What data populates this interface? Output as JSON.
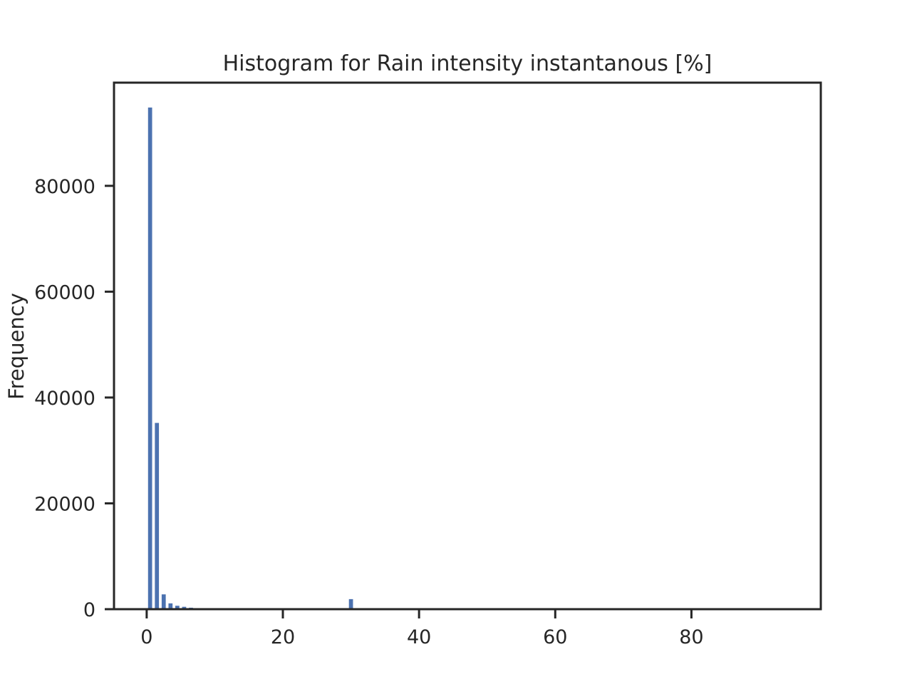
{
  "chart_data": {
    "type": "bar",
    "title": "Histogram for Rain intensity instantanous [%]",
    "xlabel": "",
    "ylabel": "Frequency",
    "xlim": [
      -4.8,
      99
    ],
    "ylim": [
      0,
      99500
    ],
    "x_ticks": [
      0,
      20,
      40,
      60,
      80
    ],
    "y_ticks": [
      0,
      20000,
      40000,
      60000,
      80000
    ],
    "grid": false,
    "bar_width": 0.6,
    "bar_color": "#4c72b0",
    "bins": [
      {
        "x": 0.5,
        "value": 94800
      },
      {
        "x": 1.5,
        "value": 35200
      },
      {
        "x": 2.5,
        "value": 2800
      },
      {
        "x": 3.5,
        "value": 1100
      },
      {
        "x": 4.5,
        "value": 650
      },
      {
        "x": 5.5,
        "value": 450
      },
      {
        "x": 6.5,
        "value": 280
      },
      {
        "x": 7.5,
        "value": 170
      },
      {
        "x": 8.5,
        "value": 110
      },
      {
        "x": 9.5,
        "value": 60
      },
      {
        "x": 30,
        "value": 1900
      }
    ]
  }
}
